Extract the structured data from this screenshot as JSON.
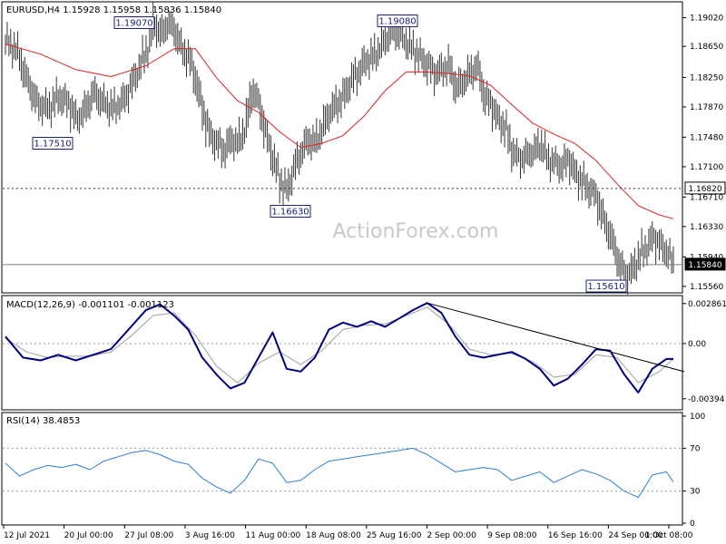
{
  "symbol": "EURUSD,H4",
  "ohlc": {
    "open": "1.15928",
    "high": "1.15958",
    "low": "1.15836",
    "close": "1.15840"
  },
  "watermark": "ActionForex.com",
  "colors": {
    "bars": "#333333",
    "ma": "#dd2222",
    "macd": "#000080",
    "signal": "#a0a0a0",
    "rsi": "#2f7fd6",
    "grid": "#999999",
    "label_border": "#1a237e",
    "price_box": "#000000"
  },
  "chart_data": [
    {
      "type": "line",
      "panel": "price",
      "title": "EURUSD,H4 1.15928 1.15958 1.15836 1.15840",
      "x_ticks": [
        "12 Jul 2021",
        "20 Jul 00:00",
        "27 Jul 08:00",
        "3 Aug 16:00",
        "11 Aug 00:00",
        "18 Aug 08:00",
        "25 Aug 16:00",
        "2 Sep 00:00",
        "9 Sep 08:00",
        "16 Sep 16:00",
        "24 Sep 00:00",
        "1 Oct 08:00"
      ],
      "y_ticks": [
        "1.19020",
        "1.18650",
        "1.18250",
        "1.17870",
        "1.17480",
        "1.17100",
        "1.16710",
        "1.16330",
        "1.15940",
        "1.15560"
      ],
      "ylim": [
        1.155,
        1.192
      ],
      "annotations": [
        {
          "label": "1.19070",
          "value": 1.1907
        },
        {
          "label": "1.17510",
          "value": 1.1751
        },
        {
          "label": "1.16630",
          "value": 1.1663
        },
        {
          "label": "1.19080",
          "value": 1.1908
        },
        {
          "label": "1.15610",
          "value": 1.1561
        }
      ],
      "levels": [
        {
          "label": "1.16820",
          "value": 1.1682,
          "style": "dotted"
        },
        {
          "label": "1.15840",
          "value": 1.1584,
          "style": "solid"
        }
      ],
      "series": [
        {
          "role": "price",
          "points": [
            [
              0,
              1.1872
            ],
            [
              3,
              1.186
            ],
            [
              6,
              1.182
            ],
            [
              9,
              1.179
            ],
            [
              12,
              1.1785
            ],
            [
              15,
              1.18
            ],
            [
              18,
              1.179
            ],
            [
              20,
              1.177
            ],
            [
              22,
              1.178
            ],
            [
              25,
              1.1805
            ],
            [
              28,
              1.179
            ],
            [
              31,
              1.1785
            ],
            [
              34,
              1.18
            ],
            [
              37,
              1.183
            ],
            [
              40,
              1.186
            ],
            [
              42,
              1.1895
            ],
            [
              44,
              1.188
            ],
            [
              46,
              1.1895
            ],
            [
              48,
              1.1885
            ],
            [
              50,
              1.186
            ],
            [
              52,
              1.185
            ],
            [
              54,
              1.182
            ],
            [
              56,
              1.178
            ],
            [
              58,
              1.175
            ],
            [
              60,
              1.174
            ],
            [
              62,
              1.173
            ],
            [
              64,
              1.1745
            ],
            [
              66,
              1.174
            ],
            [
              68,
              1.176
            ],
            [
              70,
              1.181
            ],
            [
              72,
              1.179
            ],
            [
              74,
              1.175
            ],
            [
              76,
              1.172
            ],
            [
              78,
              1.169
            ],
            [
              80,
              1.168
            ],
            [
              82,
              1.171
            ],
            [
              84,
              1.173
            ],
            [
              86,
              1.1745
            ],
            [
              88,
              1.174
            ],
            [
              90,
              1.176
            ],
            [
              92,
              1.178
            ],
            [
              94,
              1.179
            ],
            [
              96,
              1.18
            ],
            [
              98,
              1.182
            ],
            [
              100,
              1.183
            ],
            [
              102,
              1.1845
            ],
            [
              104,
              1.185
            ],
            [
              106,
              1.186
            ],
            [
              108,
              1.1875
            ],
            [
              110,
              1.1885
            ],
            [
              112,
              1.188
            ],
            [
              114,
              1.187
            ],
            [
              116,
              1.186
            ],
            [
              118,
              1.185
            ],
            [
              120,
              1.184
            ],
            [
              122,
              1.183
            ],
            [
              124,
              1.1835
            ],
            [
              126,
              1.184
            ],
            [
              128,
              1.181
            ],
            [
              130,
              1.182
            ],
            [
              132,
              1.183
            ],
            [
              134,
              1.184
            ],
            [
              136,
              1.18
            ],
            [
              138,
              1.179
            ],
            [
              140,
              1.177
            ],
            [
              142,
              1.176
            ],
            [
              144,
              1.173
            ],
            [
              146,
              1.172
            ],
            [
              148,
              1.1725
            ],
            [
              150,
              1.173
            ],
            [
              152,
              1.174
            ],
            [
              154,
              1.172
            ],
            [
              156,
              1.1715
            ],
            [
              158,
              1.171
            ],
            [
              160,
              1.172
            ],
            [
              162,
              1.17
            ],
            [
              164,
              1.169
            ],
            [
              166,
              1.168
            ],
            [
              168,
              1.167
            ],
            [
              170,
              1.164
            ],
            [
              172,
              1.162
            ],
            [
              174,
              1.159
            ],
            [
              176,
              1.157
            ],
            [
              178,
              1.1575
            ],
            [
              180,
              1.1595
            ],
            [
              182,
              1.1605
            ],
            [
              184,
              1.162
            ],
            [
              186,
              1.161
            ],
            [
              188,
              1.16
            ],
            [
              190,
              1.1584
            ]
          ]
        },
        {
          "role": "moving-average",
          "points": [
            [
              0,
              1.1868
            ],
            [
              10,
              1.1855
            ],
            [
              20,
              1.1835
            ],
            [
              30,
              1.1826
            ],
            [
              40,
              1.184
            ],
            [
              48,
              1.1862
            ],
            [
              54,
              1.1862
            ],
            [
              60,
              1.1825
            ],
            [
              66,
              1.1795
            ],
            [
              72,
              1.178
            ],
            [
              78,
              1.1755
            ],
            [
              84,
              1.1735
            ],
            [
              90,
              1.174
            ],
            [
              96,
              1.175
            ],
            [
              102,
              1.1775
            ],
            [
              108,
              1.1808
            ],
            [
              114,
              1.1832
            ],
            [
              120,
              1.1832
            ],
            [
              126,
              1.183
            ],
            [
              132,
              1.1827
            ],
            [
              138,
              1.1815
            ],
            [
              144,
              1.179
            ],
            [
              150,
              1.1766
            ],
            [
              156,
              1.1752
            ],
            [
              162,
              1.174
            ],
            [
              168,
              1.1718
            ],
            [
              174,
              1.1688
            ],
            [
              180,
              1.166
            ],
            [
              186,
              1.1648
            ],
            [
              190,
              1.1643
            ]
          ]
        }
      ]
    },
    {
      "type": "line",
      "panel": "macd",
      "title": "MACD(12,26,9) -0.001101 -0.001123",
      "y_ticks": [
        "0.002861",
        "0.00",
        "-0.00394"
      ],
      "ylim": [
        -0.0046,
        0.0033
      ],
      "trendline": {
        "start": [
          120,
          0.0029
        ],
        "end": [
          190,
          -0.002
        ]
      },
      "series": [
        {
          "role": "macd",
          "points": [
            [
              0,
              0.0005
            ],
            [
              5,
              -0.001
            ],
            [
              10,
              -0.0012
            ],
            [
              15,
              -0.0008
            ],
            [
              20,
              -0.0012
            ],
            [
              25,
              -0.0008
            ],
            [
              30,
              -0.0004
            ],
            [
              35,
              0.001
            ],
            [
              40,
              0.0024
            ],
            [
              44,
              0.0028
            ],
            [
              48,
              0.002
            ],
            [
              52,
              0.001
            ],
            [
              56,
              -0.001
            ],
            [
              60,
              -0.0022
            ],
            [
              64,
              -0.0032
            ],
            [
              68,
              -0.0028
            ],
            [
              72,
              -0.001
            ],
            [
              76,
              0.0008
            ],
            [
              80,
              -0.0018
            ],
            [
              84,
              -0.002
            ],
            [
              88,
              -0.001
            ],
            [
              92,
              0.001
            ],
            [
              96,
              0.0015
            ],
            [
              100,
              0.0012
            ],
            [
              104,
              0.0016
            ],
            [
              108,
              0.0012
            ],
            [
              112,
              0.0018
            ],
            [
              116,
              0.0024
            ],
            [
              120,
              0.0029
            ],
            [
              124,
              0.0022
            ],
            [
              128,
              0.0005
            ],
            [
              132,
              -0.0008
            ],
            [
              136,
              -0.001
            ],
            [
              140,
              -0.0008
            ],
            [
              144,
              -0.0006
            ],
            [
              148,
              -0.0011
            ],
            [
              152,
              -0.0018
            ],
            [
              156,
              -0.003
            ],
            [
              160,
              -0.0025
            ],
            [
              164,
              -0.0015
            ],
            [
              168,
              -0.0004
            ],
            [
              172,
              -0.0005
            ],
            [
              176,
              -0.0022
            ],
            [
              180,
              -0.0035
            ],
            [
              184,
              -0.0018
            ],
            [
              188,
              -0.0011
            ],
            [
              190,
              -0.0011
            ]
          ]
        },
        {
          "role": "signal",
          "points": [
            [
              0,
              0.0004
            ],
            [
              6,
              -0.0006
            ],
            [
              12,
              -0.001
            ],
            [
              18,
              -0.0009
            ],
            [
              24,
              -0.0009
            ],
            [
              30,
              -0.0006
            ],
            [
              36,
              0.0006
            ],
            [
              42,
              0.002
            ],
            [
              48,
              0.0022
            ],
            [
              54,
              0.0006
            ],
            [
              60,
              -0.0016
            ],
            [
              66,
              -0.0028
            ],
            [
              72,
              -0.0014
            ],
            [
              78,
              -0.0006
            ],
            [
              84,
              -0.0015
            ],
            [
              90,
              -0.0005
            ],
            [
              96,
              0.001
            ],
            [
              102,
              0.0013
            ],
            [
              108,
              0.0014
            ],
            [
              114,
              0.002
            ],
            [
              120,
              0.0026
            ],
            [
              126,
              0.0014
            ],
            [
              132,
              -0.0004
            ],
            [
              138,
              -0.0008
            ],
            [
              144,
              -0.0007
            ],
            [
              150,
              -0.0013
            ],
            [
              156,
              -0.0024
            ],
            [
              162,
              -0.0022
            ],
            [
              168,
              -0.0008
            ],
            [
              174,
              -0.001
            ],
            [
              180,
              -0.0028
            ],
            [
              186,
              -0.002
            ],
            [
              190,
              -0.0011
            ]
          ]
        }
      ]
    },
    {
      "type": "line",
      "panel": "rsi",
      "title": "RSI(14) 38.4853",
      "y_ticks": [
        "100",
        "70",
        "30",
        "0"
      ],
      "ylim": [
        0,
        100
      ],
      "guides": [
        70,
        30
      ],
      "series": [
        {
          "role": "rsi",
          "points": [
            [
              0,
              56
            ],
            [
              4,
              44
            ],
            [
              8,
              50
            ],
            [
              12,
              54
            ],
            [
              16,
              52
            ],
            [
              20,
              55
            ],
            [
              24,
              50
            ],
            [
              28,
              58
            ],
            [
              32,
              62
            ],
            [
              36,
              66
            ],
            [
              40,
              68
            ],
            [
              44,
              64
            ],
            [
              48,
              58
            ],
            [
              52,
              55
            ],
            [
              56,
              42
            ],
            [
              60,
              34
            ],
            [
              64,
              28
            ],
            [
              68,
              40
            ],
            [
              72,
              60
            ],
            [
              76,
              56
            ],
            [
              80,
              38
            ],
            [
              84,
              40
            ],
            [
              88,
              50
            ],
            [
              92,
              58
            ],
            [
              96,
              60
            ],
            [
              100,
              62
            ],
            [
              104,
              64
            ],
            [
              108,
              66
            ],
            [
              112,
              68
            ],
            [
              116,
              70
            ],
            [
              120,
              64
            ],
            [
              124,
              56
            ],
            [
              128,
              48
            ],
            [
              132,
              50
            ],
            [
              136,
              52
            ],
            [
              140,
              50
            ],
            [
              144,
              40
            ],
            [
              148,
              44
            ],
            [
              152,
              48
            ],
            [
              156,
              38
            ],
            [
              160,
              44
            ],
            [
              164,
              50
            ],
            [
              168,
              46
            ],
            [
              172,
              40
            ],
            [
              176,
              30
            ],
            [
              180,
              24
            ],
            [
              184,
              45
            ],
            [
              188,
              48
            ],
            [
              190,
              38.5
            ]
          ]
        }
      ]
    }
  ]
}
